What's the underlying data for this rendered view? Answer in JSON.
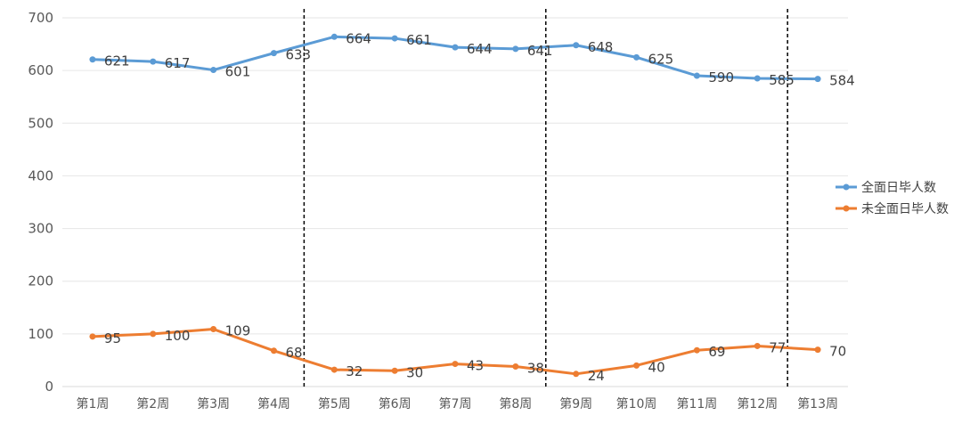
{
  "chart_data": {
    "type": "line",
    "categories": [
      "第1周",
      "第2周",
      "第3周",
      "第4周",
      "第5周",
      "第6周",
      "第7周",
      "第8周",
      "第9周",
      "第10周",
      "第11周",
      "第12周",
      "第13周"
    ],
    "series": [
      {
        "name": "全面日毕人数",
        "color": "#5B9BD5",
        "values": [
          621,
          617,
          601,
          633,
          664,
          661,
          644,
          641,
          648,
          625,
          590,
          585,
          584
        ]
      },
      {
        "name": "未全面日毕人数",
        "color": "#ED7D31",
        "values": [
          95,
          100,
          109,
          68,
          32,
          30,
          43,
          38,
          24,
          40,
          69,
          77,
          70
        ]
      }
    ],
    "yticks": [
      0,
      100,
      200,
      300,
      400,
      500,
      600,
      700
    ],
    "ylim": [
      0,
      700
    ],
    "grid": true,
    "legend": "right",
    "separators_after_category": [
      4,
      8,
      12
    ]
  }
}
